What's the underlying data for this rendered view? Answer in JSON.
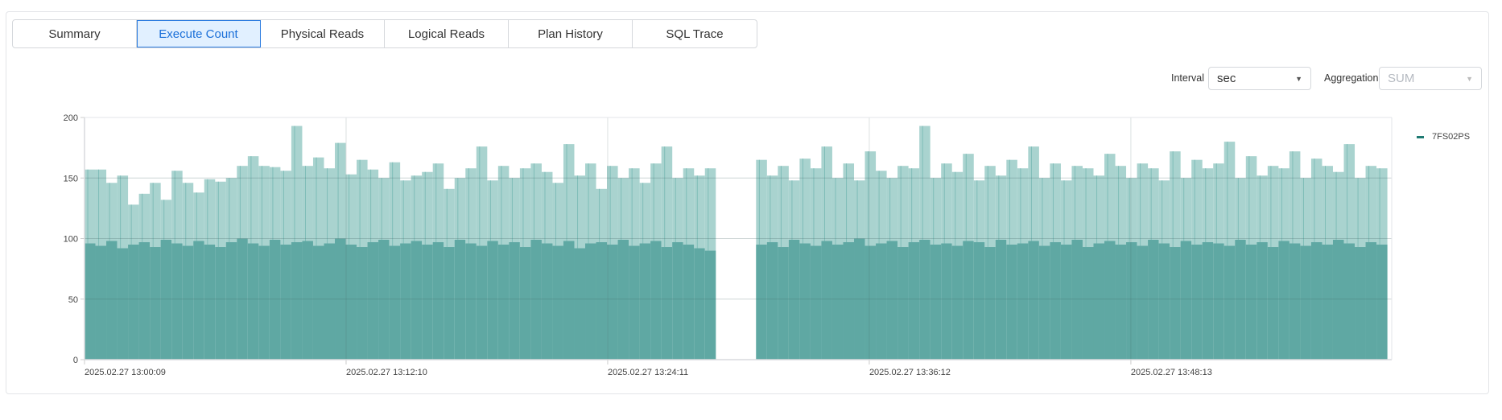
{
  "tabs": [
    {
      "label": "Summary",
      "active": false
    },
    {
      "label": "Execute Count",
      "active": true
    },
    {
      "label": "Physical Reads",
      "active": false
    },
    {
      "label": "Logical Reads",
      "active": false
    },
    {
      "label": "Plan History",
      "active": false
    },
    {
      "label": "SQL Trace",
      "active": false
    }
  ],
  "controls": {
    "interval_label": "Interval",
    "interval_value": "sec",
    "aggregation_label": "Aggregation",
    "aggregation_value": "SUM",
    "aggregation_disabled": true
  },
  "colors": {
    "bar": "#5fa8a3",
    "bar_peak": "#a9d3cf",
    "legend": "#1f7a72"
  },
  "chart_data": {
    "type": "bar",
    "legend": "7FS02PS",
    "legend_position": "right",
    "ylim": [
      0,
      200
    ],
    "yticks": [
      "0",
      "50",
      "100",
      "150",
      "200"
    ],
    "x_range": [
      "13:00:09",
      "14:00:12"
    ],
    "xticks": [
      {
        "label": "2025.02.27 13:00:09",
        "time": "13:00:09"
      },
      {
        "label": "2025.02.27 13:12:10",
        "time": "13:12:10"
      },
      {
        "label": "2025.02.27 13:24:11",
        "time": "13:24:11"
      },
      {
        "label": "2025.02.27 13:36:12",
        "time": "13:36:12"
      },
      {
        "label": "2025.02.27 13:48:13",
        "time": "13:48:13"
      }
    ],
    "grid": true,
    "segments": [
      {
        "start": "13:00:09",
        "bin_seconds": 30,
        "max": [
          157,
          157,
          146,
          152,
          128,
          137,
          146,
          132,
          156,
          146,
          138,
          149,
          147,
          150,
          160,
          168,
          160,
          159,
          156,
          193,
          160,
          167,
          158,
          179,
          153,
          165,
          157,
          150,
          163,
          148,
          152,
          155,
          162,
          141,
          150,
          158,
          176,
          148,
          160,
          150,
          158,
          162,
          155,
          146,
          178,
          152,
          162,
          141,
          160,
          150,
          158,
          146,
          162,
          176,
          150,
          158,
          152,
          158
        ],
        "avg": [
          96,
          94,
          98,
          92,
          95,
          97,
          93,
          99,
          96,
          94,
          98,
          95,
          93,
          97,
          100,
          96,
          94,
          99,
          95,
          97,
          98,
          94,
          96,
          100,
          95,
          93,
          97,
          99,
          94,
          96,
          98,
          95,
          97,
          93,
          99,
          96,
          94,
          98,
          95,
          97,
          93,
          99,
          96,
          94,
          98,
          92,
          96,
          97,
          95,
          99,
          94,
          96,
          98,
          93,
          97,
          95,
          92,
          90
        ]
      },
      {
        "start": "13:31:00",
        "bin_seconds": 30,
        "max": [
          165,
          152,
          160,
          148,
          166,
          158,
          176,
          150,
          162,
          148,
          172,
          156,
          150,
          160,
          158,
          193,
          150,
          162,
          155,
          170,
          148,
          160,
          152,
          165,
          158,
          176,
          150,
          162,
          148,
          160,
          158,
          152,
          170,
          160,
          150,
          162,
          158,
          148,
          172,
          150,
          165,
          158,
          162,
          180,
          150,
          168,
          152,
          160,
          158,
          172,
          150,
          166,
          160,
          155,
          178,
          150,
          160,
          158
        ],
        "avg": [
          95,
          97,
          93,
          99,
          96,
          94,
          98,
          95,
          97,
          100,
          94,
          96,
          98,
          93,
          97,
          99,
          95,
          96,
          94,
          98,
          97,
          93,
          99,
          95,
          96,
          98,
          94,
          97,
          95,
          99,
          93,
          96,
          98,
          95,
          97,
          94,
          99,
          96,
          93,
          98,
          95,
          97,
          96,
          94,
          99,
          95,
          97,
          93,
          98,
          96,
          94,
          97,
          95,
          99,
          96,
          93,
          97,
          95
        ]
      }
    ]
  }
}
